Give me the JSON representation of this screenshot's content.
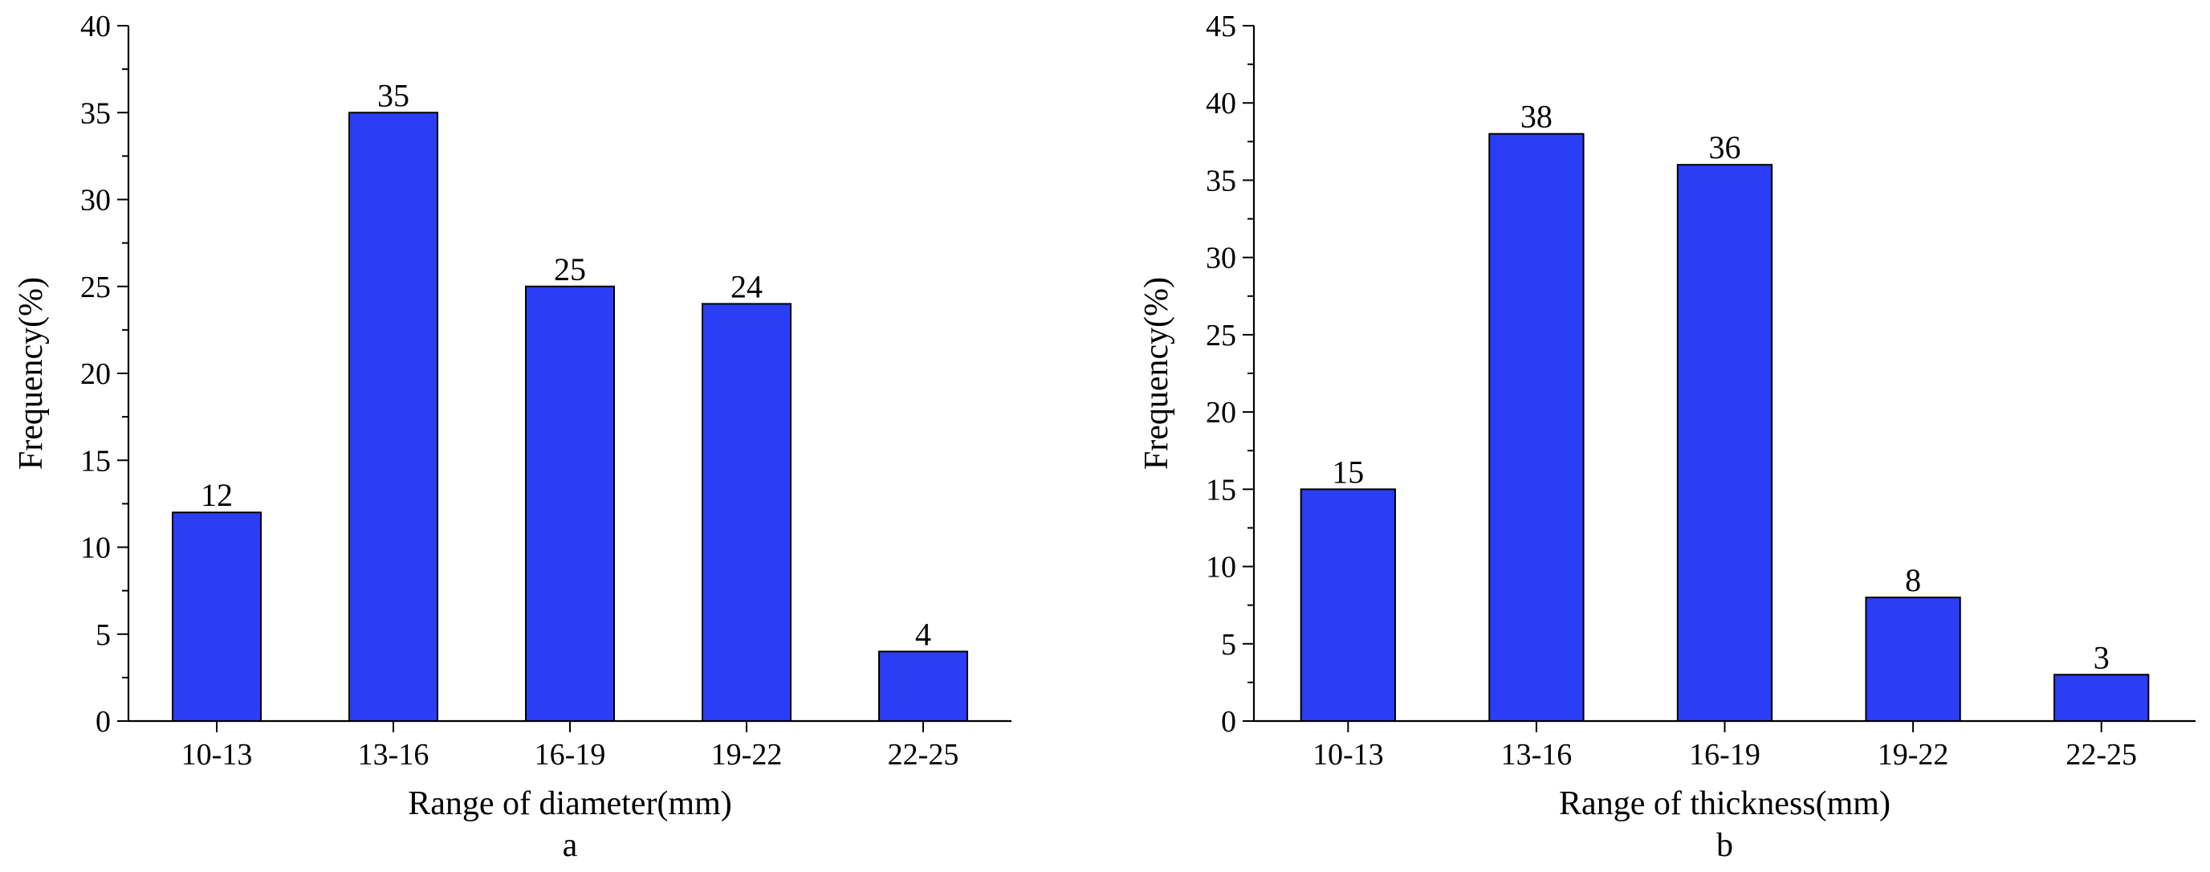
{
  "chart_data": [
    {
      "type": "bar",
      "categories": [
        "10-13",
        "13-16",
        "16-19",
        "19-22",
        "22-25"
      ],
      "values": [
        12,
        35,
        25,
        24,
        4
      ],
      "data_labels": [
        "12",
        "35",
        "25",
        "24",
        "4"
      ],
      "xlabel": "Range of diameter(mm)",
      "ylabel": "Frequency(%)",
      "ylim": [
        0,
        40
      ],
      "yticks": [
        0,
        5,
        10,
        15,
        20,
        25,
        30,
        35,
        40
      ],
      "ytick_labels": [
        "0",
        "5",
        "10",
        "15",
        "20",
        "25",
        "30",
        "35",
        "40"
      ],
      "panel_label": "a",
      "bar_color": "#2b3df5",
      "grid": false
    },
    {
      "type": "bar",
      "categories": [
        "10-13",
        "13-16",
        "16-19",
        "19-22",
        "22-25"
      ],
      "values": [
        15,
        38,
        36,
        8,
        3
      ],
      "data_labels": [
        "15",
        "38",
        "36",
        "8",
        "3"
      ],
      "xlabel": "Range of thickness(mm)",
      "ylabel": "Frequency(%)",
      "ylim": [
        0,
        45
      ],
      "yticks": [
        0,
        5,
        10,
        15,
        20,
        25,
        30,
        35,
        40,
        45
      ],
      "ytick_labels": [
        "0",
        "5",
        "10",
        "15",
        "20",
        "25",
        "30",
        "35",
        "40",
        "45"
      ],
      "panel_label": "b",
      "bar_color": "#2b3df5",
      "grid": false
    }
  ]
}
